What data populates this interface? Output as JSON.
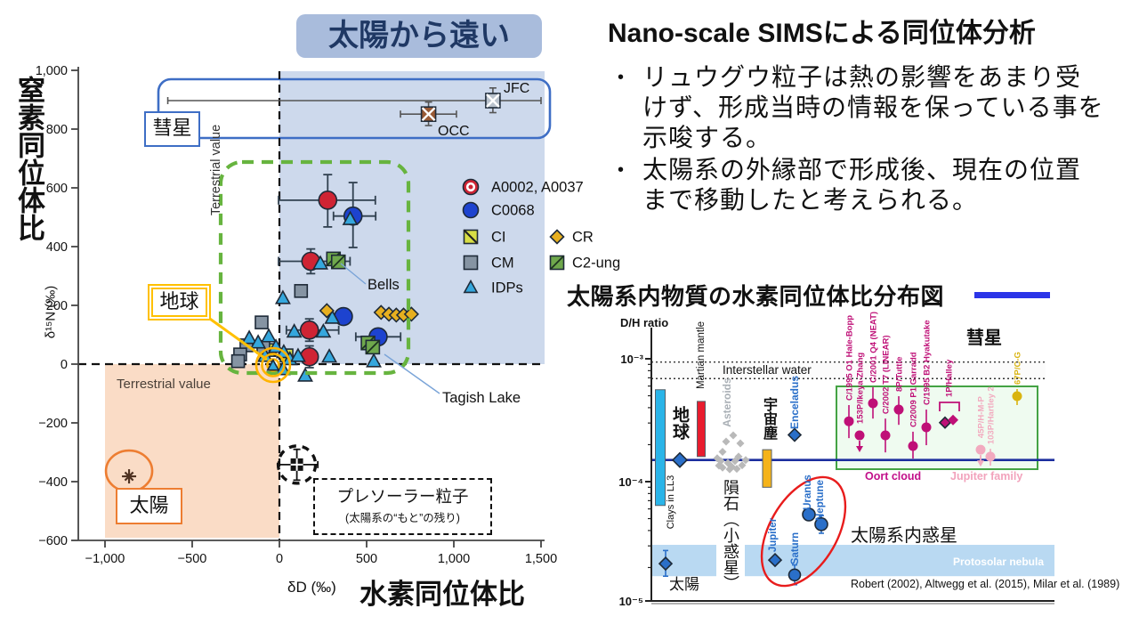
{
  "header": {
    "title": "Nano-scale SIMSによる同位体分析",
    "bullets": [
      "リュウグウ粒子は熱の影響をあまり受けず、形成当時の情報を保っている事を示唆する。",
      "太陽系の外縁部で形成後、現在の位置まで移動したと考えられる。"
    ]
  },
  "chart_data": [
    {
      "type": "scatter",
      "badge": "太陽から遠い",
      "ylabel_main": "窒素同位体比",
      "ylabel_sub": "δ¹⁵N (‰)",
      "xlabel_sub": "δD (‰)",
      "xlabel_main": "水素同位体比",
      "xlim": [
        -1000,
        1500
      ],
      "ylim": [
        -600,
        1000
      ],
      "xticks": [
        {
          "v": -1000,
          "label": "−1,000"
        },
        {
          "v": -500,
          "label": "−500"
        },
        {
          "v": 0,
          "label": "0"
        },
        {
          "v": 500,
          "label": "500"
        },
        {
          "v": 1000,
          "label": "1,000"
        },
        {
          "v": 1500,
          "label": "1,500"
        }
      ],
      "yticks": [
        {
          "v": 1000,
          "label": "1,000"
        },
        {
          "v": 800,
          "label": "800"
        },
        {
          "v": 600,
          "label": "600"
        },
        {
          "v": 400,
          "label": "400"
        },
        {
          "v": 200,
          "label": "200"
        },
        {
          "v": 0,
          "label": "0"
        },
        {
          "v": -200,
          "label": "−200"
        },
        {
          "v": -400,
          "label": "−400"
        },
        {
          "v": -600,
          "label": "−600"
        }
      ],
      "terrestrial_vertical": "Terrestrial value",
      "terrestrial_horizontal": "Terrestrial value",
      "comet_label": "彗星",
      "earth_label": "地球",
      "sun_label": "太陽",
      "presolar_label": "プレソーラー粒子",
      "presolar_sublabel": "(太陽系の“もと”の残り)",
      "bells_label": "Bells",
      "tagish_label": "Tagish Lake",
      "legend": [
        {
          "label": "A0002, A0037",
          "marker": "donut",
          "color": "#cf2434",
          "mx": 529,
          "my": 210,
          "tx": 552
        },
        {
          "label": "C0068",
          "marker": "circle",
          "color": "#1d43cf",
          "mx": 529,
          "my": 236,
          "tx": 552
        },
        {
          "label": "CI",
          "marker": "square_diag_ci",
          "color": "#d8de45",
          "mx": 529,
          "my": 266,
          "tx": 552
        },
        {
          "label": "CM",
          "marker": "square",
          "color": "#8694a3",
          "mx": 529,
          "my": 295,
          "tx": 552
        },
        {
          "label": "IDPs",
          "marker": "triangle",
          "color": "#35a7dd",
          "mx": 529,
          "my": 323,
          "tx": 552
        },
        {
          "label": "CR",
          "marker": "diamond",
          "color": "#e7af1f",
          "mx": 626,
          "my": 266,
          "tx": 643
        },
        {
          "label": "C2-ung",
          "marker": "square_diag_c2",
          "color": "#6fa84c",
          "mx": 626,
          "my": 295,
          "tx": 643
        }
      ],
      "series": [
        {
          "id": "ryugu-a0002-a0037",
          "label": "A0002, A0037",
          "marker": "circle",
          "color": "#cf2434",
          "size": 10,
          "points": [
            {
              "x": 277,
              "y": 558,
              "xe": [
                -5,
                550
              ],
              "ye": [
                467,
                645
              ]
            },
            {
              "x": 180,
              "y": 350,
              "xe": [
                -5,
                405
              ],
              "ye": [
                308,
                392
              ]
            },
            {
              "x": 172,
              "y": 116,
              "xe": [
                40,
                340
              ],
              "ye": [
                78,
                154
              ]
            },
            {
              "x": 172,
              "y": 25,
              "ye": [
                -12,
                62
              ]
            }
          ]
        },
        {
          "id": "ryugu-c0068",
          "label": "C0068",
          "marker": "circle",
          "color": "#1d43cf",
          "size": 10,
          "points": [
            {
              "x": 422,
              "y": 504,
              "xe": [
                310,
                552
              ],
              "ye": [
                397,
                618
              ]
            },
            {
              "x": 367,
              "y": 162
            },
            {
              "x": 566,
              "y": 93,
              "xe": [
                438,
                695
              ]
            }
          ]
        },
        {
          "id": "ci",
          "label": "CI",
          "marker": "square_diag_ci",
          "color": "#d8de45",
          "size": 7,
          "points": [
            {
              "x": -56,
              "y": 48
            },
            {
              "x": 41,
              "y": 30
            }
          ]
        },
        {
          "id": "cm",
          "label": "CM",
          "marker": "square",
          "color": "#8694a3",
          "size": 7,
          "points": [
            {
              "x": 124,
              "y": 249
            },
            {
              "x": -102,
              "y": 142
            },
            {
              "x": -189,
              "y": 64
            },
            {
              "x": -92,
              "y": 58
            },
            {
              "x": -225,
              "y": 33
            },
            {
              "x": -237,
              "y": 10
            }
          ]
        },
        {
          "id": "idps",
          "label": "IDPs",
          "marker": "triangle",
          "color": "#35a7dd",
          "size": 8,
          "points": [
            {
              "x": 20,
              "y": 224
            },
            {
              "x": -173,
              "y": 88
            },
            {
              "x": -122,
              "y": 73
            },
            {
              "x": -61,
              "y": 94
            },
            {
              "x": -20,
              "y": 58
            },
            {
              "x": 25,
              "y": 40
            },
            {
              "x": 60,
              "y": 16
            },
            {
              "x": -82,
              "y": 27
            },
            {
              "x": 107,
              "y": 27
            },
            {
              "x": 85,
              "y": 110
            },
            {
              "x": 252,
              "y": 110
            },
            {
              "x": 235,
              "y": 342
            },
            {
              "x": 406,
              "y": 493
            },
            {
              "x": 303,
              "y": 157
            },
            {
              "x": 286,
              "y": 25
            },
            {
              "x": 541,
              "y": 9
            },
            {
              "x": 20,
              "y": -18
            },
            {
              "x": 148,
              "y": -40
            }
          ]
        },
        {
          "id": "cr",
          "label": "CR",
          "marker": "diamond",
          "color": "#e7af1f",
          "size": 7.5,
          "points": [
            {
              "x": 272,
              "y": 182
            },
            {
              "x": 583,
              "y": 176
            },
            {
              "x": 628,
              "y": 170
            },
            {
              "x": 670,
              "y": 167
            },
            {
              "x": 712,
              "y": 167
            },
            {
              "x": 757,
              "y": 170
            }
          ]
        },
        {
          "id": "c2-ung",
          "label": "C2-ung",
          "marker": "square_diag_c2",
          "color": "#6fa84c",
          "size": 7.5,
          "points": [
            {
              "x": 310,
              "y": 358
            },
            {
              "x": 338,
              "y": 348
            },
            {
              "x": 508,
              "y": 72
            },
            {
              "x": 535,
              "y": 58
            }
          ]
        }
      ],
      "comets": [
        {
          "label": "JFC",
          "x": 1224,
          "y": 897,
          "xe": [
            -640,
            1500
          ],
          "ye": [
            856,
            940
          ],
          "color": "#b9c2cd"
        },
        {
          "label": "OCC",
          "x": 855,
          "y": 851,
          "xe": [
            694,
            1015
          ],
          "ye": [
            812,
            892
          ],
          "color": "#9a5a35"
        }
      ],
      "sun": {
        "x": -862,
        "y": -382
      },
      "presolar": {
        "x": 100,
        "y": -342,
        "xe": [
          -5,
          220
        ],
        "ye": [
          -395,
          -290
        ]
      },
      "earth_marker": {
        "x": -36,
        "y": -3
      }
    },
    {
      "type": "scatter",
      "title": "太陽系内物質の水素同位体比分布図",
      "ylabel": "D/H ratio",
      "yticks": [
        {
          "v": 0.001,
          "label": "10⁻³"
        },
        {
          "v": 0.0001,
          "label": "10⁻⁴"
        },
        {
          "v": 1e-05,
          "label": "10⁻⁵"
        }
      ],
      "ref_line": {
        "dh": 0.00015
      },
      "interstellar": {
        "label": "Interstellar water",
        "range": [
          0.00069,
          0.00094
        ]
      },
      "protosolar": {
        "label": "Protosolar nebula",
        "range": [
          1.7e-05,
          3.06e-05
        ]
      },
      "bars": [
        {
          "name": "earth-clays",
          "x": 742,
          "w": 11,
          "range": [
            6.4e-05,
            0.00056
          ],
          "color": "#2ab4e8",
          "label": "地球",
          "sublabel": "Clays in LL3"
        },
        {
          "name": "martian-mantle",
          "x": 788,
          "w": 9,
          "range": [
            0.00016,
            0.00045
          ],
          "color": "#e81c2e",
          "label": "Martian mantle"
        },
        {
          "name": "cosmic-dust",
          "x": 862,
          "w": 10,
          "range": [
            9e-05,
            0.000182
          ],
          "color": "#f5b31a",
          "label": "宇宙塵"
        }
      ],
      "asteroids": {
        "label": "Asteroids",
        "points": [
          {
            "x": 806,
            "dh": 0.000155
          },
          {
            "x": 812,
            "dh": 0.000175
          },
          {
            "x": 818,
            "dh": 0.000142
          },
          {
            "x": 822,
            "dh": 0.000133
          },
          {
            "x": 826,
            "dh": 0.000147
          },
          {
            "x": 830,
            "dh": 0.00016
          },
          {
            "x": 834,
            "dh": 0.000136
          },
          {
            "x": 812,
            "dh": 0.00013
          },
          {
            "x": 820,
            "dh": 0.000126
          },
          {
            "x": 828,
            "dh": 0.000127
          },
          {
            "x": 816,
            "dh": 0.000212
          },
          {
            "x": 824,
            "dh": 0.000238
          },
          {
            "x": 808,
            "dh": 0.000135
          },
          {
            "x": 832,
            "dh": 0.000205
          },
          {
            "x": 838,
            "dh": 0.00015
          },
          {
            "x": 810,
            "dh": 0.000147
          }
        ]
      },
      "points": [
        {
          "name": "earth-vsmow",
          "x": 764,
          "dh": 0.00015,
          "marker": "diamond",
          "size": 8
        },
        {
          "name": "enceladus",
          "x": 893,
          "dh": 0.00024,
          "marker": "diamond",
          "size": 7,
          "label": "Enceladus"
        },
        {
          "name": "sun",
          "x": 748,
          "dh": 2.15e-05,
          "err": [
            1.7e-05,
            2.75e-05
          ],
          "marker": "diamond",
          "size": 7,
          "label": "太陽"
        },
        {
          "name": "jupiter",
          "x": 871,
          "dh": 2.3e-05,
          "marker": "diamond",
          "size": 7,
          "label": "Jupiter"
        },
        {
          "name": "saturn",
          "x": 893,
          "dh": 1.74e-05,
          "err": [
            1.45e-05,
            2.1e-05
          ],
          "marker": "circle",
          "size": 6.5,
          "label": "Saturn"
        },
        {
          "name": "uranus",
          "x": 909,
          "dh": 5.4e-05,
          "marker": "circle",
          "size": 7,
          "label": "Uranus"
        },
        {
          "name": "neptune",
          "x": 923,
          "dh": 4.5e-05,
          "err": [
            3.8e-05,
            5.3e-05
          ],
          "marker": "circle",
          "size": 7,
          "label": "Neptune"
        }
      ],
      "comets": [
        {
          "label": "C/1995 O1 Hale-Bopp",
          "x": 954,
          "dh": 0.00031,
          "err": [
            0.000226,
            0.00042
          ],
          "style": "oort"
        },
        {
          "label": "153P/Ikeya-Zhang",
          "x": 966,
          "dh": 0.000238,
          "arrow": true,
          "style": "oort"
        },
        {
          "label": "C/2001 Q4 (NEAT)",
          "x": 981,
          "dh": 0.000434,
          "err": [
            0.000326,
            0.000586
          ],
          "style": "oort"
        },
        {
          "label": "C/2002 T7 (LINEAR)",
          "x": 995,
          "dh": 0.000238,
          "err": [
            0.000173,
            0.000326
          ],
          "style": "oort"
        },
        {
          "label": "8P/Tuttle",
          "x": 1010,
          "dh": 0.000386,
          "err": [
            0.00029,
            0.000496
          ],
          "style": "oort"
        },
        {
          "label": "C/2009 P1 Garradd",
          "x": 1026,
          "dh": 0.000195,
          "err": [
            0.000154,
            0.000255
          ],
          "style": "oort"
        },
        {
          "label": "C/1995 B2 Hyakutake",
          "x": 1041,
          "dh": 0.000277,
          "err": [
            0.000198,
            0.000386
          ],
          "style": "oort"
        },
        {
          "label": "1P/Halley",
          "x": 1066,
          "dh": 0.00031,
          "pair": true,
          "bracket": true,
          "style": "oort"
        },
        {
          "label": "45P/H-M-P",
          "x": 1102,
          "dh": 0.000182,
          "arrow": true,
          "style": "jf"
        },
        {
          "label": "103P/Hartley 2",
          "x": 1113,
          "dh": 0.00016,
          "err": [
            0.000135,
            0.000185
          ],
          "style": "jf"
        },
        {
          "label": "67P/C-G",
          "x": 1143,
          "dh": 0.000496,
          "err": [
            0.00042,
            0.000567
          ],
          "style": "p67"
        }
      ],
      "comet_region_label": "彗星",
      "group_labels": {
        "oort": "Oort cloud",
        "jf": "Jupiter family"
      },
      "planets_label": "太陽系内惑星",
      "meteorite_label": "隕石（小惑星）",
      "citation": "Robert (2002), Altwegg et al. (2015), Milar et al. (1989)",
      "colors": {
        "oort": "#bf1077",
        "jf": "#f2aabf",
        "p67": "#d9b410",
        "navy": "#1c2e9e"
      }
    }
  ]
}
